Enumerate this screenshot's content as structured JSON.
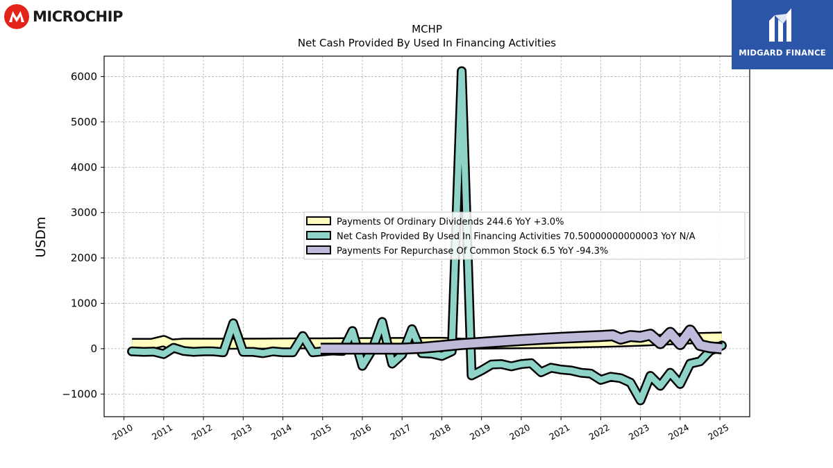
{
  "brand": {
    "left_logo_text": "MICROCHIP",
    "right_logo_text": "MIDGARD FINANCE"
  },
  "colors": {
    "dividends": "#ffffbf",
    "net_cash": "#8dd3c7",
    "repurchase": "#bebada",
    "outline": "#000000",
    "grid": "#b0b0b0"
  },
  "chart_data": {
    "type": "line",
    "title": "MCHP",
    "subtitle": "Net Cash Provided By Used In Financing Activities",
    "xlabel": "",
    "ylabel": "USDm",
    "xlim": [
      2009.5,
      2025.75
    ],
    "ylim": [
      -1500,
      6450
    ],
    "yticks": [
      -1000,
      0,
      1000,
      2000,
      3000,
      4000,
      5000,
      6000
    ],
    "ytick_labels": [
      "−1000",
      "0",
      "1000",
      "2000",
      "3000",
      "4000",
      "5000",
      "6000"
    ],
    "xticks": [
      2010,
      2011,
      2012,
      2013,
      2014,
      2015,
      2016,
      2017,
      2018,
      2019,
      2020,
      2021,
      2022,
      2023,
      2024,
      2025
    ],
    "grid": true,
    "legend_position": "center-right",
    "series": [
      {
        "name": "Payments Of Ordinary Dividends  244.6 YoY +3.0%",
        "color": "#ffffbf",
        "style": "band",
        "x": [
          2010.2,
          2010.7,
          2011.0,
          2011.2,
          2011.5,
          2012.0,
          2012.5,
          2013.0,
          2013.5,
          2014.0,
          2014.5,
          2015.0,
          2015.5,
          2016.0,
          2016.5,
          2017.0,
          2017.5,
          2018.0,
          2018.5,
          2019.0,
          2019.5,
          2020.0,
          2020.5,
          2021.0,
          2021.5,
          2022.0,
          2022.5,
          2023.0,
          2023.5,
          2024.0,
          2024.5,
          2025.05
        ],
        "values": [
          105,
          105,
          170,
          90,
          110,
          110,
          110,
          110,
          112,
          115,
          117,
          118,
          120,
          122,
          124,
          126,
          128,
          130,
          110,
          112,
          116,
          120,
          126,
          132,
          140,
          150,
          160,
          175,
          195,
          215,
          235,
          245
        ]
      },
      {
        "name": "Net Cash Provided By Used In Financing Activities  70.50000000000003 YoY N/A",
        "color": "#8dd3c7",
        "style": "line",
        "x": [
          2010.2,
          2010.5,
          2010.75,
          2011.0,
          2011.25,
          2011.5,
          2011.75,
          2012.0,
          2012.25,
          2012.5,
          2012.75,
          2013.0,
          2013.25,
          2013.5,
          2013.75,
          2014.0,
          2014.25,
          2014.5,
          2014.75,
          2015.0,
          2015.25,
          2015.5,
          2015.75,
          2016.0,
          2016.25,
          2016.5,
          2016.75,
          2017.0,
          2017.25,
          2017.5,
          2017.75,
          2018.0,
          2018.25,
          2018.5,
          2018.75,
          2019.0,
          2019.25,
          2019.5,
          2019.75,
          2020.0,
          2020.25,
          2020.5,
          2020.75,
          2021.0,
          2021.25,
          2021.5,
          2021.75,
          2022.0,
          2022.25,
          2022.5,
          2022.75,
          2023.0,
          2023.25,
          2023.5,
          2023.75,
          2024.0,
          2024.25,
          2024.5,
          2024.75,
          2025.05
        ],
        "values": [
          -60,
          -70,
          -65,
          -120,
          20,
          -50,
          -70,
          -60,
          -60,
          -80,
          560,
          -70,
          -70,
          -100,
          -60,
          -80,
          -80,
          280,
          -80,
          -60,
          -40,
          -50,
          390,
          -380,
          -20,
          590,
          -330,
          -130,
          430,
          -100,
          -110,
          -160,
          -60,
          6120,
          -590,
          -480,
          -350,
          -340,
          -390,
          -340,
          -320,
          -520,
          -420,
          -460,
          -480,
          -530,
          -550,
          -690,
          -620,
          -650,
          -750,
          -1140,
          -600,
          -820,
          -530,
          -780,
          -330,
          -280,
          -50,
          70
        ]
      },
      {
        "name": "Payments For Repurchase Of Common Stock  6.5 YoY -94.3%",
        "color": "#bebada",
        "style": "band",
        "x": [
          2014.95,
          2016.0,
          2017.0,
          2017.5,
          2018.0,
          2018.5,
          2019.0,
          2019.5,
          2020.0,
          2020.5,
          2021.0,
          2021.5,
          2022.0,
          2022.3,
          2022.5,
          2022.75,
          2023.0,
          2023.25,
          2023.5,
          2023.75,
          2024.0,
          2024.25,
          2024.5,
          2024.75,
          2025.05
        ],
        "values": [
          0,
          0,
          0,
          20,
          60,
          100,
          130,
          160,
          190,
          215,
          240,
          260,
          280,
          295,
          220,
          280,
          260,
          310,
          120,
          350,
          100,
          400,
          80,
          30,
          6.5
        ]
      }
    ]
  }
}
